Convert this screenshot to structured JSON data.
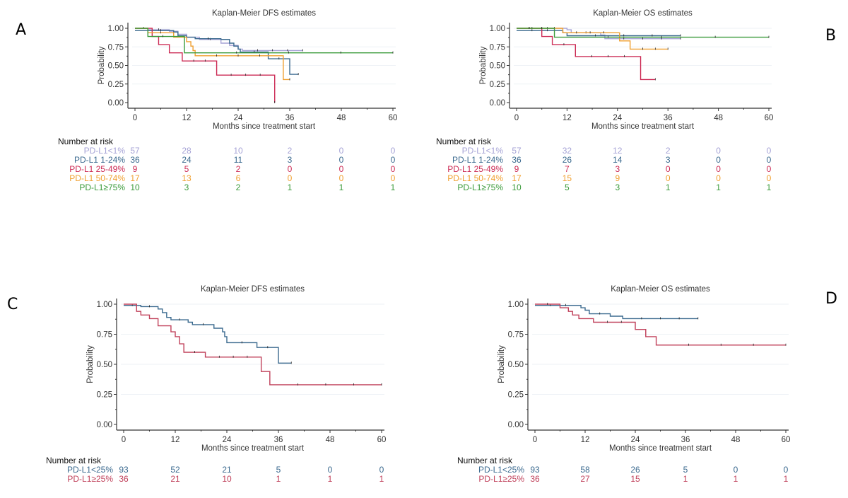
{
  "panels": {
    "A": "A",
    "B": "B",
    "C": "C",
    "D": "D"
  },
  "risk_header": "Number at risk",
  "colors": {
    "pdl1_lt1": "#a6a3d6",
    "pdl1_1_24": "#3b6a8f",
    "pdl1_25_49": "#cc2b55",
    "pdl1_50_74": "#f0a030",
    "pdl1_ge75": "#3a9a3a",
    "pdl1_lt25": "#3b6a8f",
    "pdl1_ge25": "#c0405a"
  },
  "chart_data": [
    {
      "id": "A",
      "type": "line",
      "title": "Kaplan-Meier DFS estimates",
      "xlabel": "Months since treatment start",
      "ylabel": "Probability",
      "xlim": [
        0,
        60
      ],
      "ylim": [
        0,
        1
      ],
      "xticks": [
        "0",
        "12",
        "24",
        "36",
        "48",
        "60"
      ],
      "yticks": [
        "0.00",
        "0.25",
        "0.50",
        "0.75",
        "1.00"
      ],
      "risk_times": [
        0,
        12,
        24,
        36,
        48,
        60
      ],
      "series": [
        {
          "name": "PD-L1<1%",
          "color": "#a6a3d6",
          "risk": [
            57,
            28,
            10,
            2,
            0,
            0
          ],
          "steps": [
            [
              0,
              1
            ],
            [
              3,
              0.98
            ],
            [
              8,
              0.96
            ],
            [
              10,
              0.92
            ],
            [
              12,
              0.88
            ],
            [
              15,
              0.85
            ],
            [
              20,
              0.8
            ],
            [
              22,
              0.77
            ],
            [
              24,
              0.72
            ],
            [
              25,
              0.7
            ],
            [
              39,
              0.7
            ]
          ]
        },
        {
          "name": "PD-L1 1-24%",
          "color": "#3b6a8f",
          "risk": [
            36,
            24,
            11,
            3,
            0,
            0
          ],
          "steps": [
            [
              0,
              0.97
            ],
            [
              9,
              0.95
            ],
            [
              10,
              0.9
            ],
            [
              12,
              0.88
            ],
            [
              14,
              0.86
            ],
            [
              20,
              0.85
            ],
            [
              22,
              0.8
            ],
            [
              23,
              0.76
            ],
            [
              24,
              0.72
            ],
            [
              24.5,
              0.68
            ],
            [
              31,
              0.59
            ],
            [
              36,
              0.38
            ],
            [
              38,
              0.38
            ]
          ]
        },
        {
          "name": "PD-L1 25-49%",
          "color": "#cc2b55",
          "risk": [
            9,
            5,
            2,
            0,
            0,
            0
          ],
          "steps": [
            [
              0,
              1
            ],
            [
              4,
              0.89
            ],
            [
              5.5,
              0.78
            ],
            [
              8,
              0.67
            ],
            [
              11,
              0.56
            ],
            [
              19,
              0.37
            ],
            [
              32.5,
              0.37
            ],
            [
              32.5,
              0.0
            ]
          ]
        },
        {
          "name": "PD-L1 50-74%",
          "color": "#f0a030",
          "risk": [
            17,
            13,
            6,
            0,
            0,
            0
          ],
          "steps": [
            [
              0,
              1
            ],
            [
              3,
              0.94
            ],
            [
              9,
              0.88
            ],
            [
              12,
              0.82
            ],
            [
              13,
              0.76
            ],
            [
              13.5,
              0.7
            ],
            [
              14,
              0.63
            ],
            [
              34,
              0.63
            ],
            [
              34.5,
              0.31
            ],
            [
              36,
              0.31
            ]
          ]
        },
        {
          "name": "PD-L1≥75%",
          "color": "#3a9a3a",
          "risk": [
            10,
            3,
            2,
            1,
            1,
            1
          ],
          "steps": [
            [
              0,
              1
            ],
            [
              3,
              0.89
            ],
            [
              10,
              0.89
            ],
            [
              11.5,
              0.67
            ],
            [
              60,
              0.67
            ]
          ]
        }
      ]
    },
    {
      "id": "B",
      "type": "line",
      "title": "Kaplan-Meier OS estimates",
      "xlabel": "Months since treatment start",
      "ylabel": "Probability",
      "xlim": [
        0,
        60
      ],
      "ylim": [
        0,
        1
      ],
      "xticks": [
        "0",
        "12",
        "24",
        "36",
        "48",
        "60"
      ],
      "yticks": [
        "0.00",
        "0.25",
        "0.50",
        "0.75",
        "1.00"
      ],
      "risk_times": [
        0,
        12,
        24,
        36,
        48,
        60
      ],
      "series": [
        {
          "name": "PD-L1<1%",
          "color": "#a6a3d6",
          "risk": [
            57,
            32,
            12,
            2,
            0,
            0
          ],
          "steps": [
            [
              0,
              1
            ],
            [
              12,
              0.98
            ],
            [
              13,
              0.94
            ],
            [
              20,
              0.91
            ],
            [
              21,
              0.86
            ],
            [
              39,
              0.86
            ]
          ]
        },
        {
          "name": "PD-L1 1-24%",
          "color": "#3b6a8f",
          "risk": [
            36,
            26,
            14,
            3,
            0,
            0
          ],
          "steps": [
            [
              0,
              0.97
            ],
            [
              11,
              0.94
            ],
            [
              12,
              0.9
            ],
            [
              39,
              0.9
            ]
          ]
        },
        {
          "name": "PD-L1 25-49%",
          "color": "#cc2b55",
          "risk": [
            9,
            7,
            3,
            0,
            0,
            0
          ],
          "steps": [
            [
              0,
              1
            ],
            [
              6,
              0.89
            ],
            [
              8.5,
              0.78
            ],
            [
              14,
              0.62
            ],
            [
              29.5,
              0.62
            ],
            [
              29.5,
              0.31
            ],
            [
              33,
              0.31
            ]
          ]
        },
        {
          "name": "PD-L1 50-74%",
          "color": "#f0a030",
          "risk": [
            17,
            15,
            9,
            0,
            0,
            0
          ],
          "steps": [
            [
              0,
              1
            ],
            [
              11,
              0.94
            ],
            [
              24,
              0.94
            ],
            [
              24.5,
              0.83
            ],
            [
              27,
              0.72
            ],
            [
              36,
              0.72
            ]
          ]
        },
        {
          "name": "PD-L1≥75%",
          "color": "#3a9a3a",
          "risk": [
            10,
            5,
            3,
            1,
            1,
            1
          ],
          "steps": [
            [
              0,
              1
            ],
            [
              9,
              0.88
            ],
            [
              60,
              0.88
            ]
          ]
        }
      ]
    },
    {
      "id": "C",
      "type": "line",
      "title": "Kaplan-Meier DFS estimates",
      "xlabel": "Months since treatment start",
      "ylabel": "Probability",
      "xlim": [
        0,
        60
      ],
      "ylim": [
        0,
        1
      ],
      "xticks": [
        "0",
        "12",
        "24",
        "36",
        "48",
        "60"
      ],
      "yticks": [
        "0.00",
        "0.25",
        "0.50",
        "0.75",
        "1.00"
      ],
      "risk_times": [
        0,
        12,
        24,
        36,
        48,
        60
      ],
      "series": [
        {
          "name": "PD-L1<25%",
          "color": "#3b6a8f",
          "risk": [
            93,
            52,
            21,
            5,
            0,
            0
          ],
          "steps": [
            [
              0,
              0.99
            ],
            [
              4,
              0.98
            ],
            [
              8,
              0.96
            ],
            [
              9,
              0.93
            ],
            [
              10,
              0.89
            ],
            [
              11,
              0.87
            ],
            [
              15,
              0.85
            ],
            [
              16,
              0.83
            ],
            [
              21,
              0.8
            ],
            [
              23,
              0.77
            ],
            [
              23.5,
              0.73
            ],
            [
              24,
              0.68
            ],
            [
              31,
              0.64
            ],
            [
              36,
              0.51
            ],
            [
              39,
              0.51
            ]
          ]
        },
        {
          "name": "PD-L1≥25%",
          "color": "#c0405a",
          "risk": [
            36,
            21,
            10,
            1,
            1,
            1
          ],
          "steps": [
            [
              0,
              1
            ],
            [
              3,
              0.94
            ],
            [
              4,
              0.91
            ],
            [
              6,
              0.88
            ],
            [
              8,
              0.82
            ],
            [
              11,
              0.77
            ],
            [
              12,
              0.73
            ],
            [
              13,
              0.67
            ],
            [
              14,
              0.6
            ],
            [
              19,
              0.56
            ],
            [
              32,
              0.44
            ],
            [
              34,
              0.33
            ],
            [
              60,
              0.33
            ]
          ]
        }
      ]
    },
    {
      "id": "D",
      "type": "line",
      "title": "Kaplan-Meier OS estimates",
      "xlabel": "Months since treatment start",
      "ylabel": "Probability",
      "xlim": [
        0,
        60
      ],
      "ylim": [
        0,
        1
      ],
      "xticks": [
        "0",
        "12",
        "24",
        "36",
        "48",
        "60"
      ],
      "yticks": [
        "0.00",
        "0.25",
        "0.50",
        "0.75",
        "1.00"
      ],
      "risk_times": [
        0,
        12,
        24,
        36,
        48,
        60
      ],
      "series": [
        {
          "name": "PD-L1<25%",
          "color": "#3b6a8f",
          "risk": [
            93,
            58,
            26,
            5,
            0,
            0
          ],
          "steps": [
            [
              0,
              0.99
            ],
            [
              11,
              0.97
            ],
            [
              12,
              0.95
            ],
            [
              13,
              0.92
            ],
            [
              18,
              0.9
            ],
            [
              21,
              0.88
            ],
            [
              39,
              0.88
            ]
          ]
        },
        {
          "name": "PD-L1≥25%",
          "color": "#c0405a",
          "risk": [
            36,
            27,
            15,
            1,
            1,
            1
          ],
          "steps": [
            [
              0,
              1
            ],
            [
              6,
              0.97
            ],
            [
              8,
              0.94
            ],
            [
              9,
              0.91
            ],
            [
              10.5,
              0.88
            ],
            [
              14,
              0.85
            ],
            [
              24,
              0.79
            ],
            [
              26.5,
              0.73
            ],
            [
              29,
              0.66
            ],
            [
              60,
              0.66
            ]
          ]
        }
      ]
    }
  ]
}
